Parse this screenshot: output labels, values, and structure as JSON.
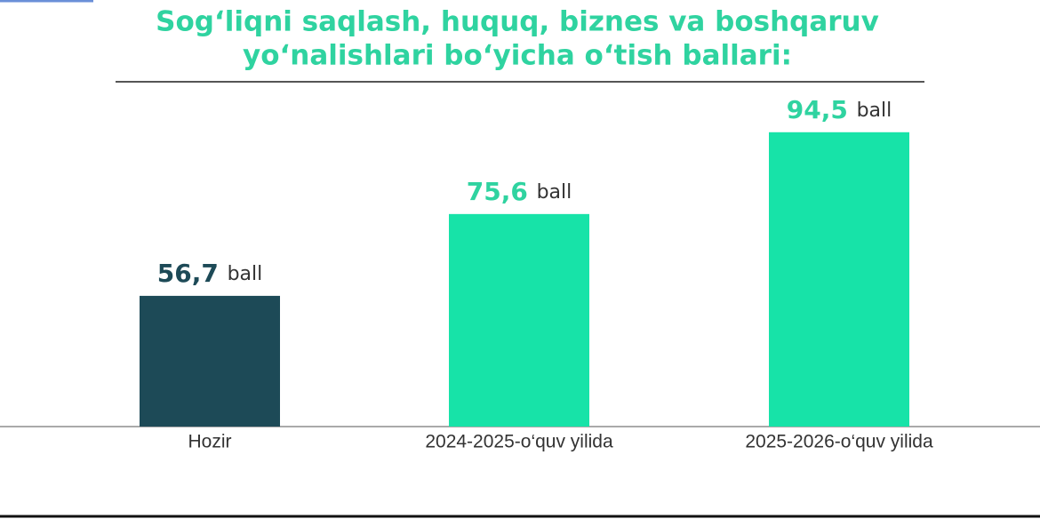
{
  "chart_data": {
    "type": "bar",
    "title": [
      "Sog‘liqni saqlash, huquq, biznes va boshqaruv",
      "yo‘nalishlari bo‘yicha o‘tish ballari:"
    ],
    "categories": [
      "Hozir",
      "2024-2025-o‘quv yilida",
      "2025-2026-o‘quv yilida"
    ],
    "values": [
      56.7,
      75.6,
      94.5
    ],
    "value_labels": [
      "56,7",
      "75,6",
      "94,5"
    ],
    "value_unit": "ball",
    "colors": [
      "#1d4a57",
      "#17e3a8",
      "#17e3a8"
    ],
    "ylim": [
      26.5,
      100
    ]
  }
}
